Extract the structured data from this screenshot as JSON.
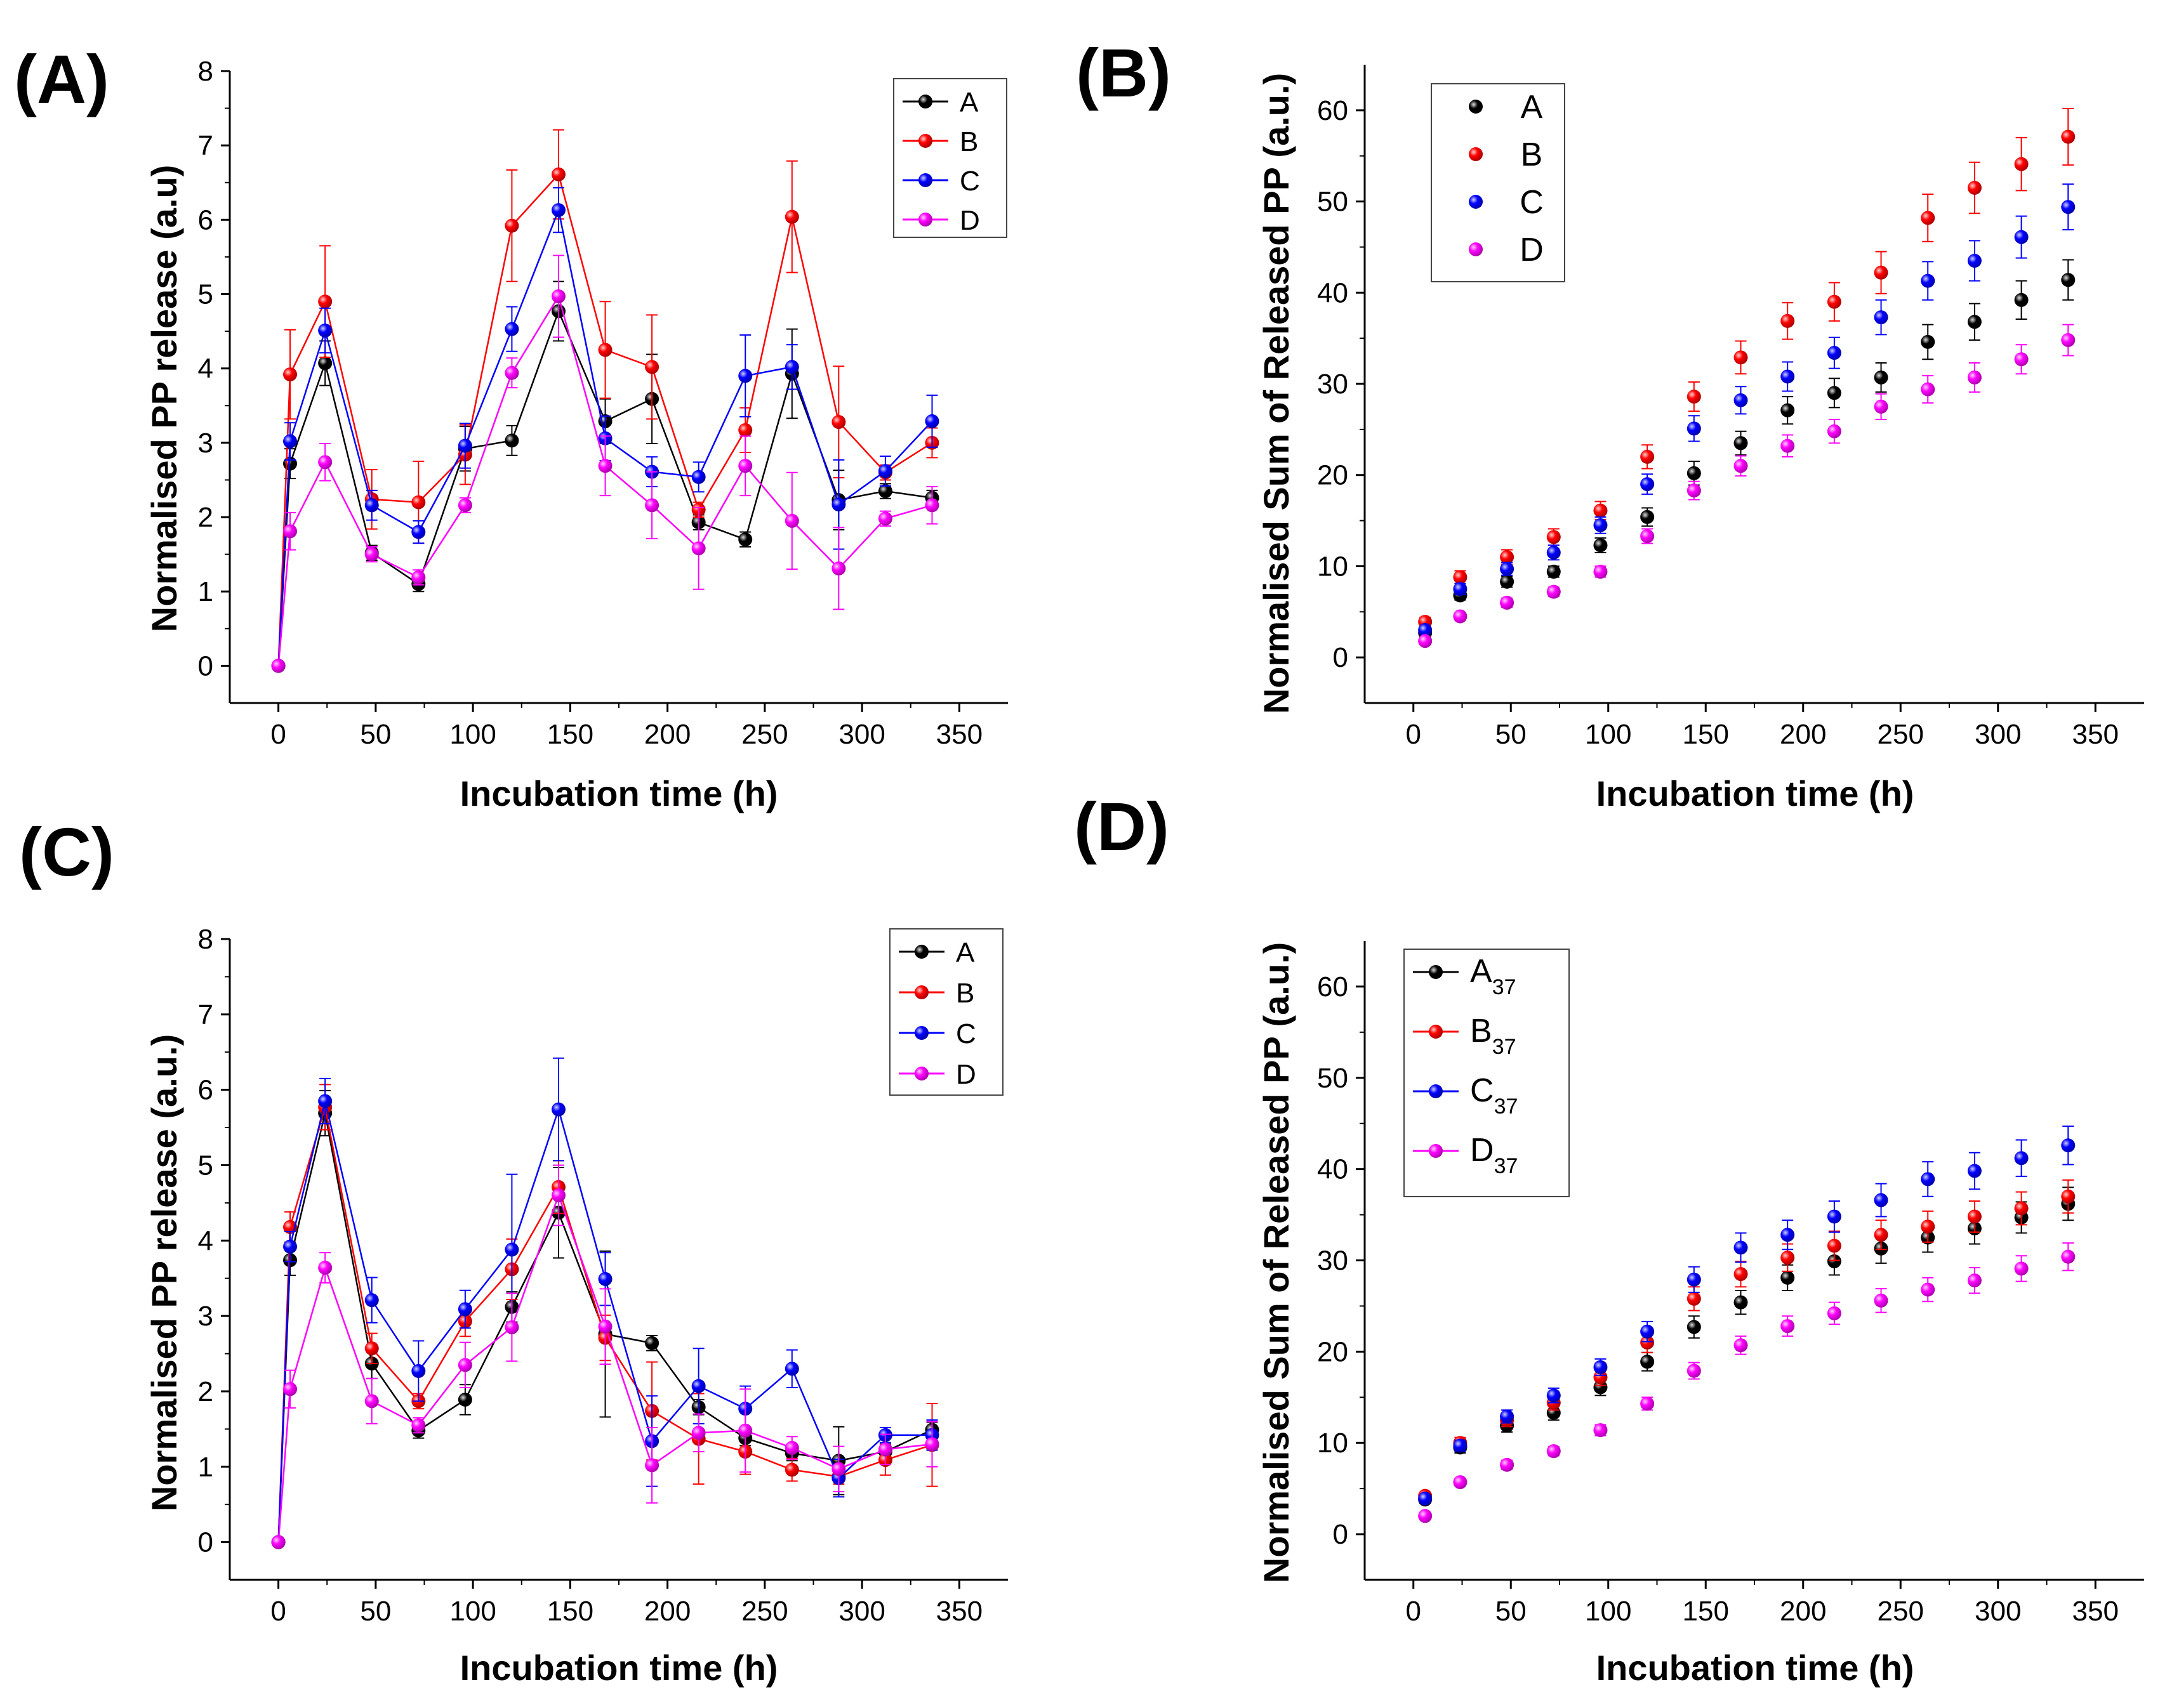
{
  "colors": {
    "A": "#000000",
    "B": "#ff0000",
    "C": "#0000ff",
    "D": "#ff00ff"
  },
  "chart_data": [
    {
      "id": "A",
      "panel_label": "(A)",
      "type": "line",
      "xlabel": "Incubation time (h)",
      "ylabel": "Normalised PP release (a.u)",
      "xlim": [
        -25,
        375
      ],
      "ylim": [
        -0.5,
        8
      ],
      "xticks": [
        0,
        50,
        100,
        150,
        200,
        250,
        300,
        350
      ],
      "yticks": [
        0,
        1,
        2,
        3,
        4,
        5,
        6,
        7,
        8
      ],
      "x": [
        0,
        6,
        24,
        48,
        72,
        96,
        120,
        144,
        168,
        192,
        216,
        240,
        264,
        288,
        312,
        336
      ],
      "legend_labels": [
        "A",
        "B",
        "C",
        "D"
      ],
      "series": [
        {
          "name": "A",
          "values": [
            0,
            2.72,
            4.07,
            1.52,
            1.1,
            2.92,
            3.03,
            4.77,
            3.29,
            3.59,
            1.93,
            1.7,
            3.93,
            2.23,
            2.35,
            2.26
          ],
          "err": [
            0,
            0.2,
            0.3,
            0.1,
            0.1,
            0.3,
            0.2,
            0.4,
            0.3,
            0.6,
            0.1,
            0.1,
            0.6,
            0.4,
            0.1,
            0.1
          ]
        },
        {
          "name": "B",
          "values": [
            0,
            3.92,
            4.9,
            2.24,
            2.2,
            2.84,
            5.92,
            6.61,
            4.25,
            4.02,
            2.1,
            3.17,
            6.04,
            3.28,
            2.6,
            3.0
          ],
          "err": [
            0,
            0.6,
            0.75,
            0.4,
            0.55,
            0.4,
            0.75,
            0.6,
            0.65,
            0.7,
            0.1,
            0.3,
            0.75,
            0.75,
            0.1,
            0.2
          ]
        },
        {
          "name": "C",
          "values": [
            0,
            3.02,
            4.51,
            2.16,
            1.8,
            2.96,
            4.53,
            6.13,
            3.06,
            2.61,
            2.54,
            3.9,
            4.02,
            2.17,
            2.62,
            3.29
          ],
          "err": [
            0,
            0.25,
            0.3,
            0.2,
            0.15,
            0.3,
            0.3,
            0.3,
            0.3,
            0.2,
            0.2,
            0.55,
            0.3,
            0.6,
            0.2,
            0.35
          ]
        },
        {
          "name": "D",
          "values": [
            0,
            1.81,
            2.74,
            1.5,
            1.19,
            2.16,
            3.94,
            4.97,
            2.69,
            2.16,
            1.58,
            2.69,
            1.95,
            1.31,
            1.98,
            2.16
          ],
          "err": [
            0,
            0.25,
            0.25,
            0.1,
            0.1,
            0.1,
            0.2,
            0.55,
            0.4,
            0.45,
            0.55,
            0.4,
            0.65,
            0.55,
            0.1,
            0.25
          ]
        }
      ]
    },
    {
      "id": "B",
      "panel_label": "(B)",
      "type": "scatter",
      "xlabel": "Incubation time (h)",
      "ylabel": "Normalised Sum of Released PP (a.u.)",
      "xlim": [
        -25,
        375
      ],
      "ylim": [
        -5,
        65
      ],
      "xticks": [
        0,
        50,
        100,
        150,
        200,
        250,
        300,
        350
      ],
      "yticks": [
        0,
        10,
        20,
        30,
        40,
        50,
        60
      ],
      "x": [
        6,
        24,
        48,
        72,
        96,
        120,
        144,
        168,
        192,
        216,
        240,
        264,
        288,
        312,
        336
      ],
      "legend_labels": [
        "A",
        "B",
        "C",
        "D"
      ],
      "series": [
        {
          "name": "A",
          "values": [
            2.7,
            6.8,
            8.3,
            9.4,
            12.3,
            15.4,
            20.2,
            23.5,
            27.1,
            29.0,
            30.7,
            34.6,
            36.8,
            39.2,
            41.4
          ],
          "err": [
            0.3,
            0.5,
            0.6,
            0.6,
            0.8,
            1.0,
            1.3,
            1.3,
            1.5,
            1.6,
            1.6,
            1.9,
            2.0,
            2.1,
            2.2
          ]
        },
        {
          "name": "B",
          "values": [
            3.9,
            8.8,
            11.0,
            13.2,
            16.1,
            22.0,
            28.6,
            32.9,
            36.9,
            39.0,
            42.2,
            48.2,
            51.5,
            54.1,
            57.1
          ],
          "err": [
            0.5,
            0.7,
            0.8,
            0.9,
            1.0,
            1.3,
            1.6,
            1.8,
            2.0,
            2.1,
            2.3,
            2.6,
            2.8,
            2.9,
            3.1
          ]
        },
        {
          "name": "C",
          "values": [
            3.0,
            7.5,
            9.7,
            11.5,
            14.5,
            19.0,
            25.1,
            28.2,
            30.8,
            33.4,
            37.3,
            41.3,
            43.5,
            46.1,
            49.4
          ],
          "err": [
            0.3,
            0.6,
            0.7,
            0.8,
            0.9,
            1.1,
            1.4,
            1.5,
            1.6,
            1.7,
            1.9,
            2.1,
            2.2,
            2.3,
            2.5
          ]
        },
        {
          "name": "D",
          "values": [
            1.8,
            4.5,
            6.0,
            7.2,
            9.4,
            13.3,
            18.3,
            21.0,
            23.2,
            24.8,
            27.5,
            29.4,
            30.7,
            32.7,
            34.8
          ],
          "err": [
            0.2,
            0.4,
            0.5,
            0.5,
            0.6,
            0.8,
            1.0,
            1.1,
            1.2,
            1.3,
            1.4,
            1.5,
            1.6,
            1.6,
            1.7
          ]
        }
      ]
    },
    {
      "id": "C",
      "panel_label": "(C)",
      "type": "line",
      "xlabel": "Incubation time (h)",
      "ylabel": "Normalised PP release (a.u.)",
      "xlim": [
        -25,
        375
      ],
      "ylim": [
        -0.5,
        8
      ],
      "xticks": [
        0,
        50,
        100,
        150,
        200,
        250,
        300,
        350
      ],
      "yticks": [
        0,
        1,
        2,
        3,
        4,
        5,
        6,
        7,
        8
      ],
      "x": [
        0,
        6,
        24,
        48,
        72,
        96,
        120,
        144,
        168,
        192,
        216,
        240,
        264,
        288,
        312,
        336
      ],
      "legend_labels": [
        "A",
        "B",
        "C",
        "D"
      ],
      "series": [
        {
          "name": "A",
          "values": [
            0,
            3.74,
            5.69,
            2.37,
            1.48,
            1.89,
            3.12,
            4.37,
            2.76,
            2.64,
            1.79,
            1.38,
            1.18,
            1.08,
            1.2,
            1.49
          ],
          "err": [
            0,
            0.2,
            0.3,
            0.2,
            0.1,
            0.2,
            0.2,
            0.6,
            1.1,
            0.1,
            0.1,
            0.1,
            0.1,
            0.45,
            0.1,
            0.1
          ]
        },
        {
          "name": "B",
          "values": [
            0,
            4.18,
            5.77,
            2.57,
            1.87,
            2.93,
            3.62,
            4.71,
            2.71,
            1.74,
            1.37,
            1.2,
            0.96,
            0.87,
            1.09,
            1.29
          ],
          "err": [
            0,
            0.2,
            0.3,
            0.2,
            0.1,
            0.2,
            0.4,
            0.35,
            0.3,
            0.65,
            0.6,
            0.3,
            0.15,
            0.1,
            0.2,
            0.55
          ]
        },
        {
          "name": "C",
          "values": [
            0,
            3.92,
            5.85,
            3.21,
            2.27,
            3.09,
            3.88,
            5.74,
            3.49,
            1.34,
            2.07,
            1.77,
            2.3,
            0.85,
            1.42,
            1.42
          ],
          "err": [
            0,
            0.2,
            0.3,
            0.3,
            0.4,
            0.25,
            1.0,
            0.68,
            0.35,
            0.6,
            0.5,
            0.3,
            0.25,
            0.25,
            0.1,
            0.2
          ]
        },
        {
          "name": "D",
          "values": [
            0,
            2.03,
            3.64,
            1.87,
            1.55,
            2.35,
            2.85,
            4.6,
            2.86,
            1.02,
            1.45,
            1.48,
            1.25,
            0.97,
            1.23,
            1.3
          ],
          "err": [
            0,
            0.25,
            0.2,
            0.3,
            0.1,
            0.3,
            0.45,
            0.4,
            0.5,
            0.5,
            0.25,
            0.55,
            0.15,
            0.3,
            0.2,
            0.3
          ]
        }
      ]
    },
    {
      "id": "D",
      "panel_label": "(D)",
      "type": "scatter",
      "xlabel": "Incubation time (h)",
      "ylabel": "Normalised Sum of Released PP (a.u.)",
      "xlim": [
        -25,
        375
      ],
      "ylim": [
        -5,
        65
      ],
      "xticks": [
        0,
        50,
        100,
        150,
        200,
        250,
        300,
        350
      ],
      "yticks": [
        0,
        10,
        20,
        30,
        40,
        50,
        60
      ],
      "x": [
        6,
        24,
        48,
        72,
        96,
        120,
        144,
        168,
        192,
        216,
        240,
        264,
        288,
        312,
        336
      ],
      "legend_labels": [
        "A",
        "B",
        "C",
        "D"
      ],
      "legend_subscript": "37",
      "series": [
        {
          "name": "A",
          "values": [
            3.8,
            9.5,
            11.9,
            13.3,
            16.1,
            18.9,
            22.7,
            25.4,
            28.1,
            29.9,
            31.3,
            32.5,
            33.5,
            34.7,
            36.2
          ],
          "err": [
            0.4,
            0.6,
            0.7,
            0.8,
            0.9,
            1.0,
            1.2,
            1.3,
            1.4,
            1.5,
            1.6,
            1.6,
            1.7,
            1.7,
            1.8
          ]
        },
        {
          "name": "B",
          "values": [
            4.2,
            10.0,
            12.5,
            14.4,
            17.2,
            21.0,
            25.8,
            28.5,
            30.3,
            31.6,
            32.8,
            33.7,
            34.8,
            35.7,
            37.0
          ],
          "err": [
            0.4,
            0.6,
            0.7,
            0.8,
            0.9,
            1.1,
            1.3,
            1.4,
            1.5,
            1.6,
            1.6,
            1.7,
            1.7,
            1.8,
            1.8
          ]
        },
        {
          "name": "C",
          "values": [
            3.9,
            9.7,
            12.9,
            15.2,
            18.3,
            22.2,
            27.9,
            31.4,
            32.8,
            34.8,
            36.6,
            38.9,
            39.8,
            41.2,
            42.6
          ],
          "err": [
            0.4,
            0.6,
            0.7,
            0.8,
            0.9,
            1.1,
            1.4,
            1.6,
            1.6,
            1.7,
            1.8,
            1.9,
            2.0,
            2.0,
            2.1
          ]
        },
        {
          "name": "D",
          "values": [
            2.0,
            5.7,
            7.6,
            9.1,
            11.4,
            14.3,
            17.9,
            20.7,
            22.8,
            24.2,
            25.6,
            26.8,
            27.8,
            29.1,
            30.4
          ],
          "err": [
            0.2,
            0.4,
            0.5,
            0.5,
            0.6,
            0.7,
            0.9,
            1.0,
            1.1,
            1.2,
            1.3,
            1.3,
            1.4,
            1.4,
            1.5
          ]
        }
      ]
    }
  ]
}
